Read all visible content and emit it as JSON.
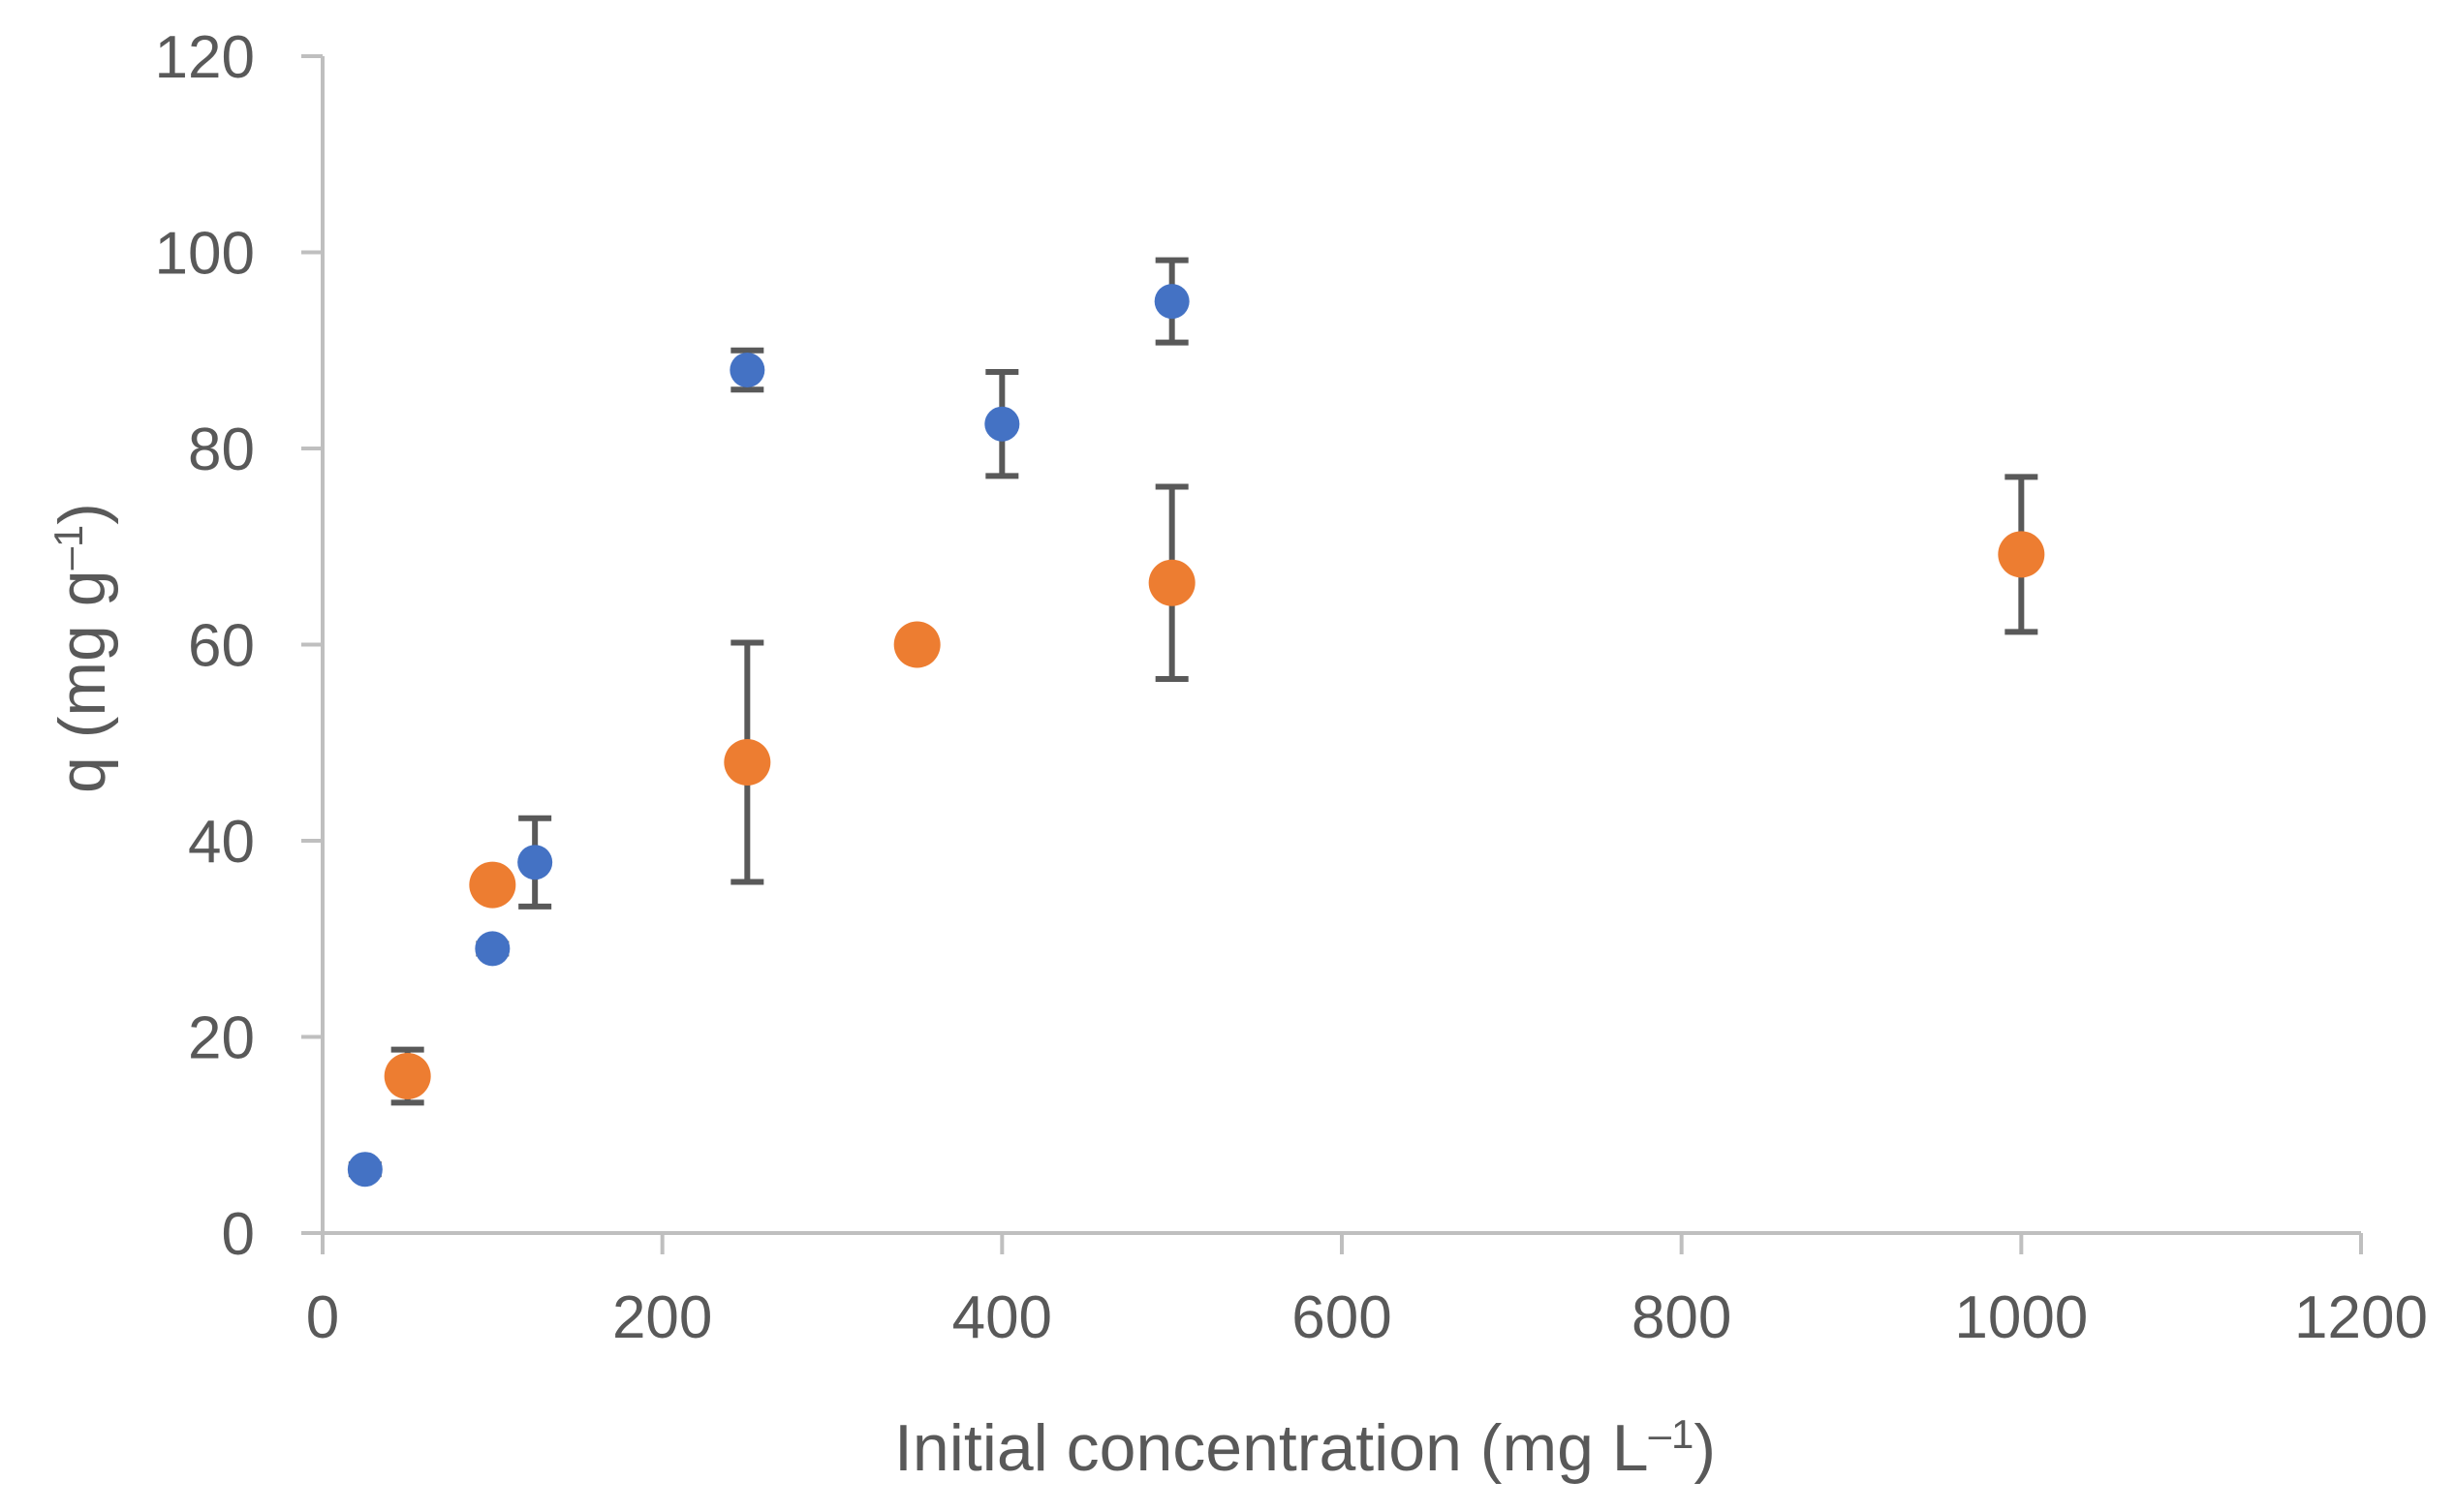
{
  "chart_data": {
    "type": "scatter",
    "title": "",
    "xlabel": "Initial concentration (mg L",
    "xlabel_sup": "–1",
    "xlabel_end": ")",
    "ylabel": "q (mg g",
    "ylabel_sup": "–1",
    "ylabel_end": ")",
    "xlim": [
      0,
      1200
    ],
    "ylim": [
      0,
      120
    ],
    "x_ticks": [
      "0",
      "200",
      "400",
      "600",
      "800",
      "1000",
      "1200"
    ],
    "y_ticks": [
      "0",
      "20",
      "40",
      "60",
      "80",
      "100",
      "120"
    ],
    "grid": false,
    "legend": "none",
    "series": [
      {
        "color": "#4472C4",
        "marker_size": "small",
        "points": [
          {
            "x": 25,
            "y": 6.5,
            "err": 0.5
          },
          {
            "x": 100,
            "y": 29,
            "err": 0.5
          },
          {
            "x": 125,
            "y": 37.8,
            "err": 4.5
          },
          {
            "x": 250,
            "y": 88,
            "err": 2
          },
          {
            "x": 400,
            "y": 82.5,
            "err": 5.3
          },
          {
            "x": 500,
            "y": 95,
            "err": 4.2
          }
        ]
      },
      {
        "color": "#ED7D31",
        "marker_size": "large",
        "points": [
          {
            "x": 50,
            "y": 16,
            "err": 2.7
          },
          {
            "x": 100,
            "y": 35.5,
            "err": 0.5
          },
          {
            "x": 250,
            "y": 48,
            "err": 12.2
          },
          {
            "x": 350,
            "y": 60,
            "err": 0
          },
          {
            "x": 500,
            "y": 66.3,
            "err": 9.8
          },
          {
            "x": 1000,
            "y": 69.2,
            "err": 7.9
          }
        ]
      }
    ],
    "axis_color": "#BFBFBF",
    "errorbar_color": "#595959"
  }
}
